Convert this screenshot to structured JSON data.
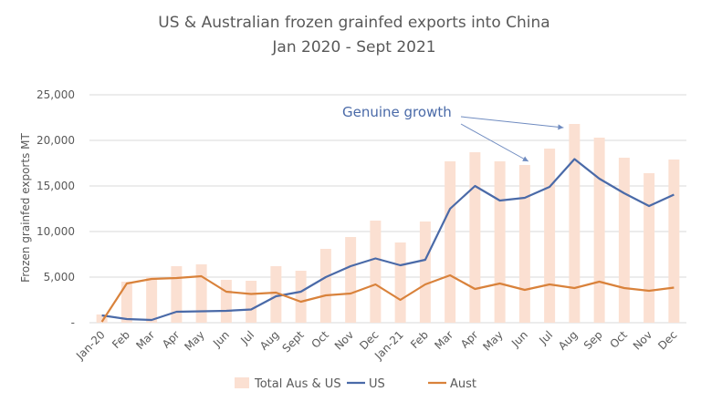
{
  "chart_data": {
    "type": "bar",
    "title": "US & Australian frozen grainfed exports into China",
    "subtitle": "Jan 2020 - Sept 2021",
    "ylabel": "Frozen grainfed exports MT",
    "xlabel": "",
    "ylim": [
      0,
      25000
    ],
    "yticks": [
      0,
      5000,
      10000,
      15000,
      20000,
      25000
    ],
    "ytick_labels": [
      "-",
      "5,000",
      "10,000",
      "15,000",
      "20,000",
      "25,000"
    ],
    "grid": true,
    "legend_position": "bottom",
    "annotation": "Genuine growth",
    "categories": [
      "Jan-20",
      "Feb",
      "Mar",
      "Apr",
      "May",
      "Jun",
      "Jul",
      "Aug",
      "Sept",
      "Oct",
      "Nov",
      "Dec",
      "Jan-21",
      "Feb",
      "Mar",
      "Apr",
      "May",
      "Jun",
      "Jul",
      "Aug",
      "Sep",
      "Oct",
      "Nov",
      "Dec"
    ],
    "series": [
      {
        "name": "Total Aus & US",
        "kind": "bar",
        "color": "#FBE0D2",
        "values": [
          900,
          4500,
          5000,
          6200,
          6400,
          4700,
          4600,
          6200,
          5700,
          8100,
          9400,
          11200,
          8800,
          11100,
          17700,
          18700,
          17700,
          17300,
          19100,
          21800,
          20300,
          18100,
          16400,
          17900
        ]
      },
      {
        "name": "US",
        "kind": "line",
        "color": "#4A6AA8",
        "values": [
          800,
          400,
          300,
          1200,
          1250,
          1300,
          1450,
          2900,
          3400,
          5000,
          6200,
          7050,
          6300,
          6900,
          12500,
          15000,
          13400,
          13700,
          14900,
          17950,
          15800,
          14200,
          12800,
          14050
        ]
      },
      {
        "name": "Aust",
        "kind": "line",
        "color": "#D9823B",
        "values": [
          100,
          4300,
          4800,
          4900,
          5100,
          3400,
          3150,
          3300,
          2300,
          3000,
          3200,
          4200,
          2500,
          4200,
          5200,
          3700,
          4300,
          3600,
          4200,
          3800,
          4500,
          3800,
          3500,
          3850
        ]
      }
    ]
  }
}
